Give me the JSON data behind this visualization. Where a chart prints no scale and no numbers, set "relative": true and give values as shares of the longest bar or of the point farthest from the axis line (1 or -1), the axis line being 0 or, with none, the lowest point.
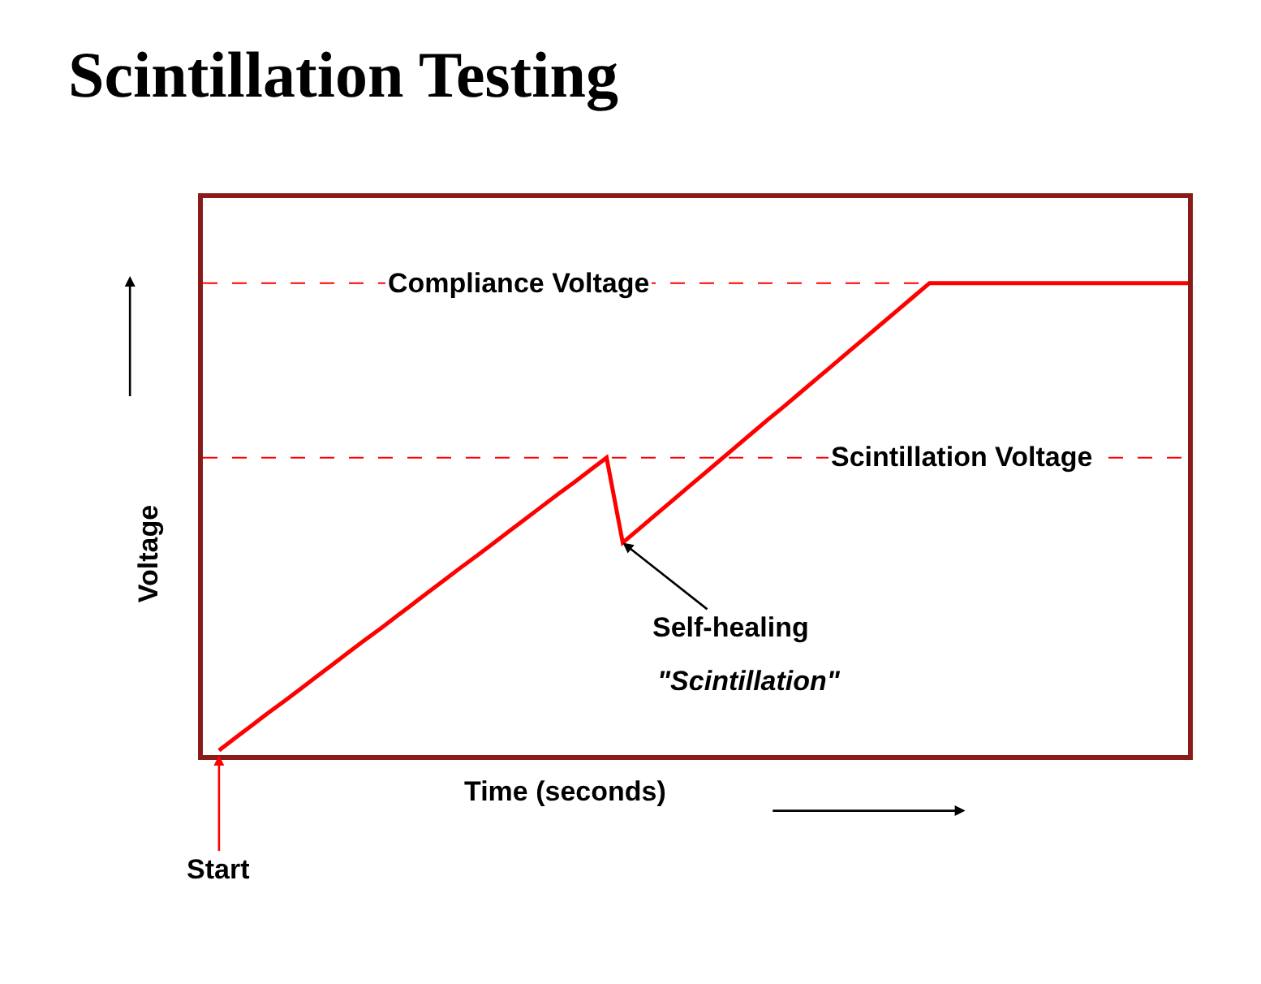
{
  "chart_data": {
    "type": "line",
    "title": "Scintillation Testing",
    "xlabel": "Time (seconds)",
    "ylabel": "Voltage",
    "relative": true,
    "categories": [
      null,
      null,
      null,
      null,
      null,
      null,
      null,
      null,
      null,
      null,
      null,
      null,
      null,
      null,
      null,
      null,
      null,
      null,
      null,
      null,
      null,
      null,
      null,
      null,
      null,
      null,
      null,
      null,
      null,
      null,
      null,
      null,
      null,
      null,
      null,
      null,
      null,
      null,
      null,
      null,
      null,
      null,
      null,
      null,
      null,
      null,
      null,
      null,
      null,
      null,
      null,
      null,
      null,
      null,
      null,
      null,
      null,
      null,
      null,
      null,
      null
    ],
    "series": [
      {
        "color": "#ff0000",
        "values": [
          0.01,
          0.036,
          0.062,
          0.088,
          0.113,
          0.139,
          0.165,
          0.191,
          0.217,
          0.243,
          0.268,
          0.294,
          0.32,
          0.346,
          0.372,
          0.398,
          0.423,
          0.449,
          0.475,
          0.501,
          0.527,
          0.553,
          0.578,
          0.604,
          0.63,
          0.45,
          0.479,
          0.508,
          0.537,
          0.566,
          0.595,
          0.624,
          0.653,
          0.682,
          0.711,
          0.739,
          0.768,
          0.797,
          0.826,
          0.855,
          0.884,
          0.913,
          0.942,
          0.971,
          1,
          1,
          1,
          1,
          1,
          1,
          1,
          1,
          1,
          1,
          1,
          1,
          1,
          1,
          1,
          1,
          1
        ]
      }
    ],
    "ref_lines": [
      {
        "axis": "y",
        "value": 1,
        "label": "Compliance Voltage",
        "color": "#ff0000",
        "line_style": "dashed"
      },
      {
        "axis": "y",
        "value": 0.63,
        "label": "Scintillation Voltage",
        "color": "#ff0000",
        "line_style": "dashed"
      }
    ],
    "annotations": [
      "Self-healing",
      "\"Scintillation\"",
      "Start"
    ],
    "legend": false,
    "marker": "none",
    "line_style": "solid"
  }
}
